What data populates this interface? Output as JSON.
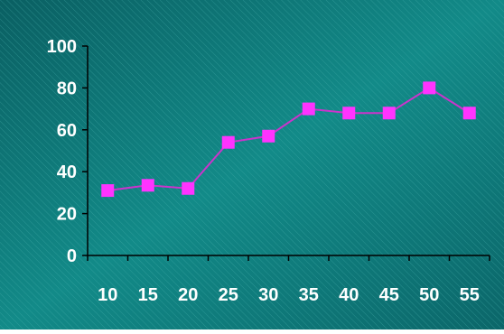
{
  "chart_data": {
    "type": "line",
    "title": "",
    "xlabel": "",
    "ylabel": "",
    "x": [
      10,
      15,
      20,
      25,
      30,
      35,
      40,
      45,
      50,
      55
    ],
    "x_tick_labels": [
      "10",
      "15",
      "20",
      "25",
      "30",
      "35",
      "40",
      "45",
      "50",
      "55"
    ],
    "series": [
      {
        "values": [
          31,
          33.5,
          32,
          54,
          57,
          70,
          68,
          68,
          80,
          68
        ]
      }
    ],
    "ylim": [
      0,
      100
    ],
    "y_ticks": [
      0,
      20,
      40,
      60,
      80,
      100
    ],
    "y_tick_labels": [
      "0",
      "20",
      "40",
      "60",
      "80",
      "100"
    ],
    "grid": false,
    "legend": "none",
    "marker": "square",
    "colors": {
      "background": "#117a7a",
      "background_hatch": "#3fa0a0",
      "line": "#cc33cc",
      "marker": "#ff33ff",
      "axis": "#000000",
      "tick_text": "#ffffff"
    }
  }
}
